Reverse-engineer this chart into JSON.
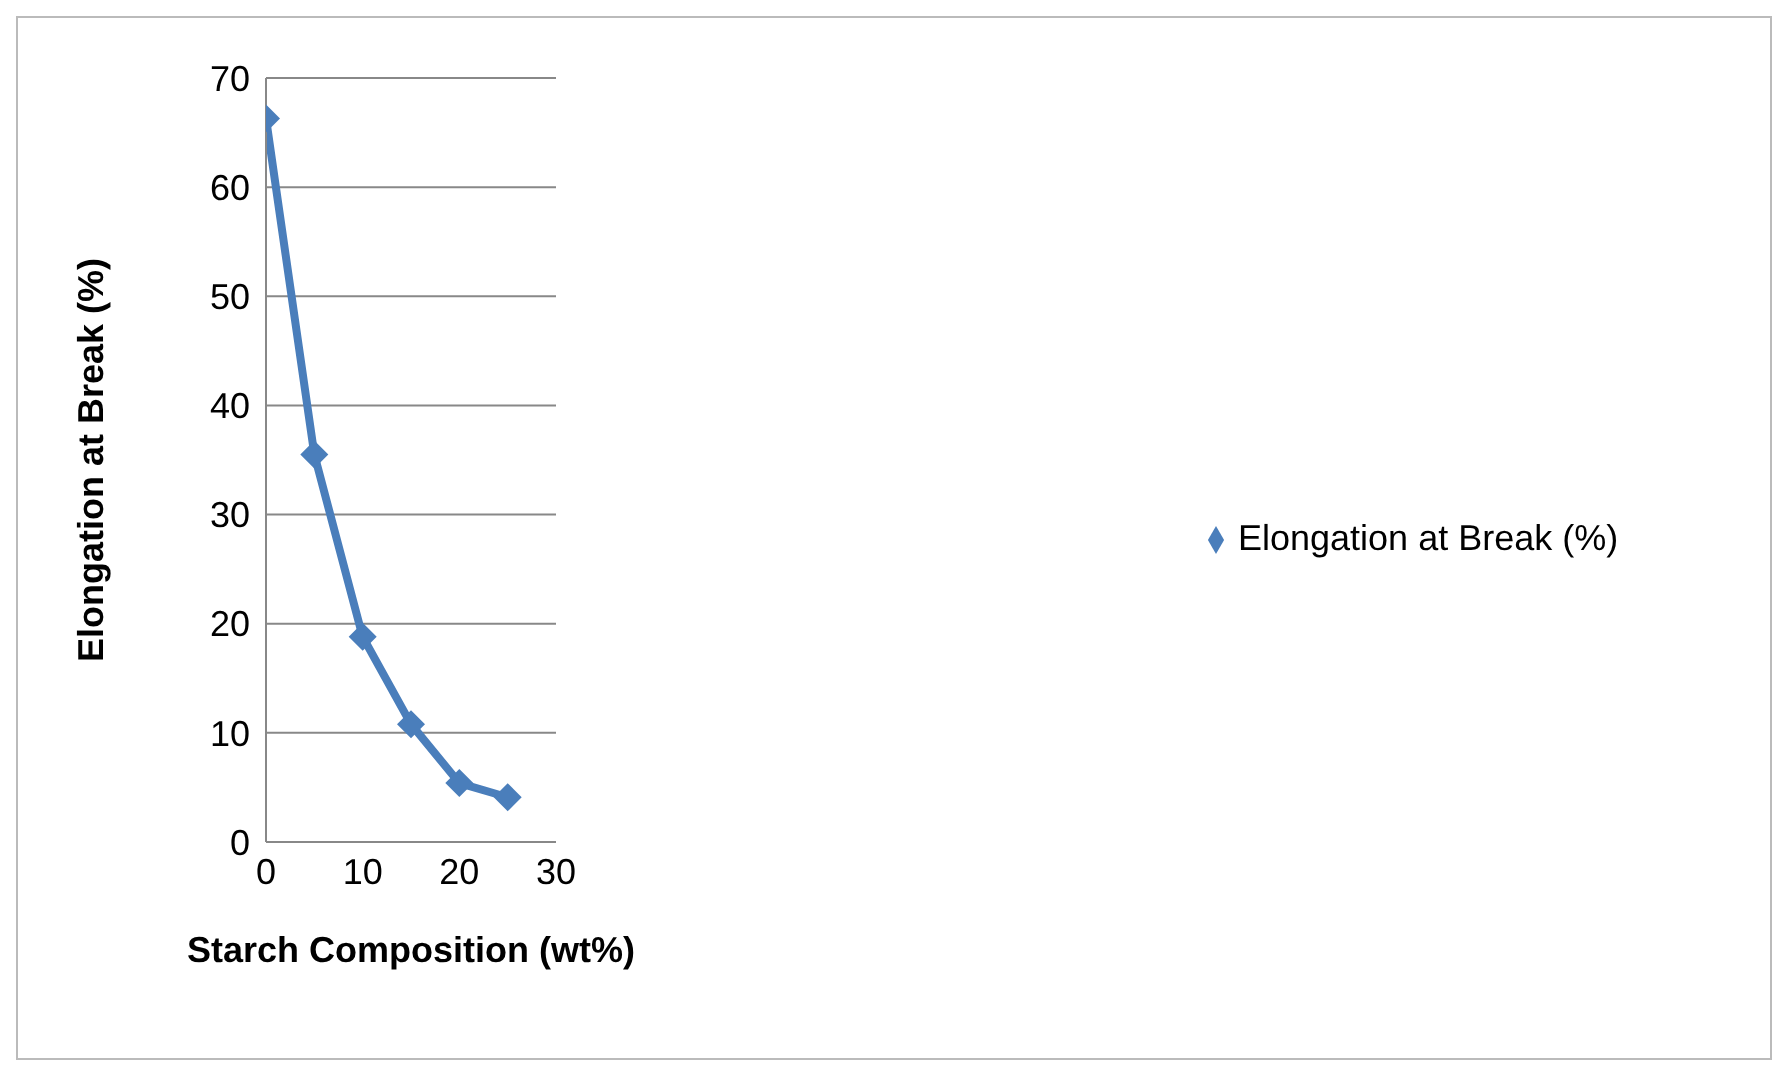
{
  "chart_data": {
    "type": "line",
    "xlabel": "Starch Composition (wt%)",
    "ylabel": "Elongation at Break (%)",
    "x": [
      0,
      5,
      10,
      15,
      20,
      25
    ],
    "series": [
      {
        "name": "Elongation at Break (%)",
        "color": "#4a7ebb",
        "values": [
          66.3,
          35.5,
          18.8,
          10.8,
          5.4,
          4.1
        ]
      }
    ],
    "xlim": [
      0,
      30
    ],
    "xticks": [
      0,
      10,
      20,
      30
    ],
    "ylim": [
      0,
      70
    ],
    "yticks": [
      0,
      10,
      20,
      30,
      40,
      50,
      60,
      70
    ],
    "grid": "y",
    "legend": "right",
    "marker": "diamond",
    "line_style": "solid"
  }
}
